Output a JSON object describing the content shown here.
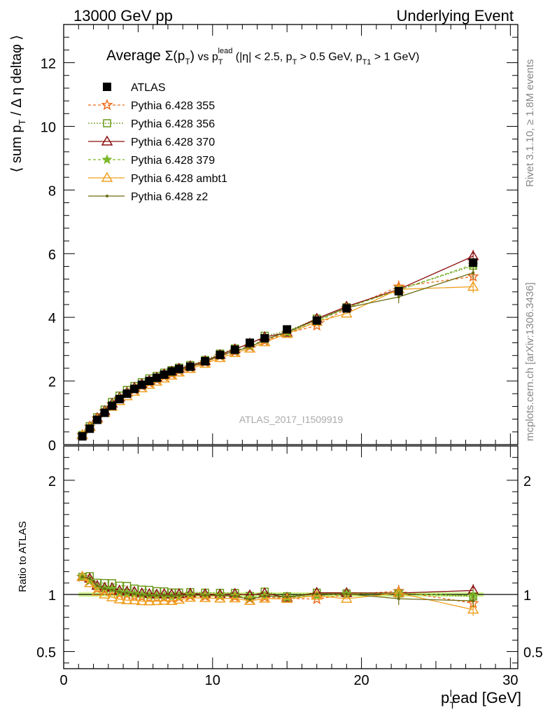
{
  "header": {
    "left": "13000 GeV pp",
    "right": "Underlying Event"
  },
  "side_text": {
    "rivet": "Rivet 3.1.10, ≥ 1.8M events",
    "mcplots": "mcplots.cern.ch [arXiv:1306.3436]"
  },
  "watermark": "ATLAS_2017_I1509919",
  "title": {
    "main": "Average",
    "sigma": "Σ(p",
    "sigma_sub": "T",
    "sigma_close": ")",
    "vs": " vs p",
    "vs_sup": "lead",
    "vs_sub": "T",
    "cond": " (|η| < 2.5, p",
    "cond_sub1": "T",
    "cond_mid": " > 0.5 GeV, p",
    "cond_sub2": "T1",
    "cond_end": " > 1 GeV)"
  },
  "ylabel_top": "⟨ sum p_T / Δη deltaφ ⟩",
  "ylabel_bottom": "Ratio to ATLAS",
  "xlabel": "p_T^lead [GeV]",
  "colors": {
    "ATLAS": "#000000",
    "355": "#ee6a1a",
    "356": "#6a9a1a",
    "370": "#8a0f0f",
    "379": "#7ab82a",
    "ambt1": "#f0a020",
    "z2": "#6a6a10",
    "band": "#c8f07a"
  },
  "chart_data": [
    {
      "type": "line",
      "title": "",
      "xlabel": "p_T^lead [GeV]",
      "ylabel": "⟨ sum p_T / Δη deltaφ ⟩",
      "xlim": [
        0,
        30.5
      ],
      "ylim": [
        0,
        13.2
      ],
      "x_ticks": [
        0,
        10,
        20,
        30
      ],
      "y_ticks": [
        0,
        2,
        4,
        6,
        8,
        10,
        12
      ],
      "x": [
        1.25,
        1.75,
        2.25,
        2.75,
        3.25,
        3.75,
        4.25,
        4.75,
        5.25,
        5.75,
        6.25,
        6.75,
        7.25,
        7.75,
        8.5,
        9.5,
        10.5,
        11.5,
        12.5,
        13.5,
        15,
        17,
        19,
        22.5,
        27.5
      ],
      "legend_position": "top-left",
      "series": [
        {
          "name": "ATLAS",
          "marker": "square",
          "values": [
            0.26,
            0.5,
            0.78,
            1.0,
            1.22,
            1.43,
            1.6,
            1.75,
            1.88,
            2.0,
            2.1,
            2.2,
            2.3,
            2.38,
            2.45,
            2.62,
            2.82,
            2.98,
            3.2,
            3.34,
            3.62,
            3.9,
            4.28,
            4.82,
            5.72
          ]
        },
        {
          "name": "Pythia 6.428 355",
          "marker": "star-open",
          "dash": "4,3",
          "values": [
            0.3,
            0.56,
            0.82,
            1.04,
            1.26,
            1.44,
            1.6,
            1.72,
            1.84,
            1.94,
            2.04,
            2.14,
            2.22,
            2.32,
            2.42,
            2.58,
            2.78,
            2.92,
            3.08,
            3.26,
            3.5,
            3.74,
            4.28,
            4.96,
            5.28
          ]
        },
        {
          "name": "Pythia 6.428 356",
          "marker": "square-open",
          "dash": "2,2",
          "values": [
            0.3,
            0.58,
            0.86,
            1.1,
            1.34,
            1.54,
            1.72,
            1.84,
            1.96,
            2.08,
            2.16,
            2.26,
            2.34,
            2.42,
            2.5,
            2.66,
            2.86,
            3.02,
            3.16,
            3.42,
            3.56,
            3.96,
            4.32,
            4.86,
            5.62
          ]
        },
        {
          "name": "Pythia 6.428 370",
          "marker": "triangle-open",
          "dash": "",
          "values": [
            0.3,
            0.57,
            0.84,
            1.06,
            1.29,
            1.48,
            1.64,
            1.79,
            1.9,
            2.01,
            2.1,
            2.21,
            2.3,
            2.39,
            2.47,
            2.63,
            2.82,
            3.0,
            3.18,
            3.38,
            3.52,
            3.96,
            4.34,
            4.88,
            5.92
          ]
        },
        {
          "name": "Pythia 6.428 379",
          "marker": "star",
          "dash": "4,3",
          "values": [
            0.3,
            0.56,
            0.83,
            1.05,
            1.28,
            1.46,
            1.62,
            1.76,
            1.87,
            1.97,
            2.07,
            2.16,
            2.25,
            2.34,
            2.44,
            2.6,
            2.79,
            2.95,
            3.1,
            3.3,
            3.52,
            3.86,
            4.3,
            4.86,
            5.66
          ]
        },
        {
          "name": "Pythia 6.428 ambt1",
          "marker": "triangle-open",
          "dash": "",
          "values": [
            0.3,
            0.55,
            0.8,
            1.0,
            1.19,
            1.37,
            1.52,
            1.66,
            1.77,
            1.88,
            1.98,
            2.08,
            2.17,
            2.27,
            2.38,
            2.54,
            2.72,
            2.88,
            3.02,
            3.22,
            3.48,
            3.86,
            4.12,
            4.88,
            4.96
          ]
        },
        {
          "name": "Pythia 6.428 z2",
          "marker": "dot",
          "dash": "",
          "values": [
            0.3,
            0.57,
            0.84,
            1.05,
            1.27,
            1.46,
            1.62,
            1.76,
            1.87,
            1.98,
            2.08,
            2.18,
            2.27,
            2.36,
            2.44,
            2.6,
            2.8,
            2.94,
            3.06,
            3.3,
            3.54,
            3.92,
            4.3,
            4.64,
            5.4
          ]
        }
      ]
    },
    {
      "type": "line",
      "title": "",
      "xlabel": "p_T^lead [GeV]",
      "ylabel": "Ratio to ATLAS",
      "xlim": [
        0,
        30.5
      ],
      "ylim": [
        0.35,
        2.3
      ],
      "y_ticks": [
        0.5,
        1,
        2
      ],
      "reference": 1
    }
  ]
}
